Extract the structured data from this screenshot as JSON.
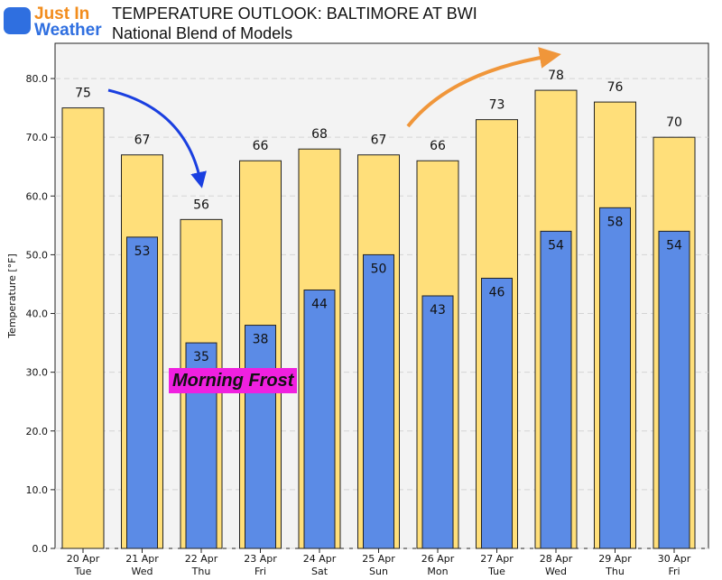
{
  "header": {
    "title": "TEMPERATURE OUTLOOK: BALTIMORE AT BWI",
    "subtitle": "National Blend of Models"
  },
  "logo": {
    "line1": "Just In",
    "line2": "Weather"
  },
  "annotations": {
    "frost_label": "Morning Frost",
    "frost_color": "#f020e0",
    "down_arrow_color": "#1a3fe0",
    "up_arrow_color": "#f0963a"
  },
  "chart_data": {
    "type": "bar",
    "title": "TEMPERATURE OUTLOOK: BALTIMORE AT BWI",
    "subtitle": "National Blend of Models",
    "ylabel": "Temperature [°F]",
    "xlabel": "",
    "ylim": [
      0,
      86
    ],
    "yticks": [
      "0.0",
      "10.0",
      "20.0",
      "30.0",
      "40.0",
      "50.0",
      "60.0",
      "70.0",
      "80.0"
    ],
    "grid": true,
    "categories": [
      [
        "20 Apr",
        "Tue"
      ],
      [
        "21 Apr",
        "Wed"
      ],
      [
        "22 Apr",
        "Thu"
      ],
      [
        "23 Apr",
        "Fri"
      ],
      [
        "24 Apr",
        "Sat"
      ],
      [
        "25 Apr",
        "Sun"
      ],
      [
        "26 Apr",
        "Mon"
      ],
      [
        "27 Apr",
        "Tue"
      ],
      [
        "28 Apr",
        "Wed"
      ],
      [
        "29 Apr",
        "Thu"
      ],
      [
        "30 Apr",
        "Fri"
      ]
    ],
    "series": [
      {
        "color": "#ffdf7a",
        "values": [
          75,
          67,
          56,
          66,
          68,
          67,
          66,
          73,
          78,
          76,
          70
        ]
      },
      {
        "color": "#5b8be6",
        "values": [
          null,
          53,
          35,
          38,
          44,
          50,
          43,
          46,
          54,
          58,
          54
        ]
      }
    ]
  }
}
